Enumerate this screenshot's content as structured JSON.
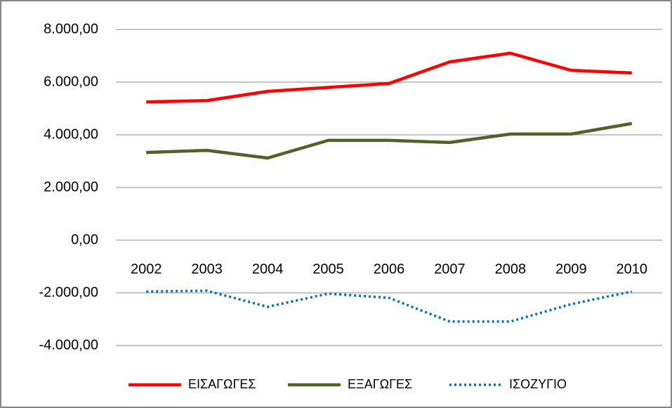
{
  "chart_data": {
    "type": "line",
    "categories": [
      "2002",
      "2003",
      "2004",
      "2005",
      "2006",
      "2007",
      "2008",
      "2009",
      "2010"
    ],
    "series": [
      {
        "name": "ΕΙΣΑΓΩΓΕΣ",
        "color": "#ff0000",
        "style": "solid",
        "values": [
          5250,
          5300,
          5650,
          5800,
          5950,
          6770,
          7100,
          6450,
          6350
        ]
      },
      {
        "name": "ΕΞΑΓΩΓΕΣ",
        "color": "#4f6228",
        "style": "solid",
        "values": [
          3330,
          3410,
          3120,
          3790,
          3790,
          3710,
          4030,
          4030,
          4430
        ]
      },
      {
        "name": "ΙΣΟΖΥΓΙΟ",
        "color": "#0070c0",
        "style": "dotted",
        "values": [
          -1950,
          -1920,
          -2530,
          -2030,
          -2190,
          -3090,
          -3090,
          -2430,
          -1950
        ]
      }
    ],
    "ylim": [
      -4000,
      8000
    ],
    "yticks": [
      {
        "value": -4000,
        "label": "-4.000,00"
      },
      {
        "value": -2000,
        "label": "-2.000,00"
      },
      {
        "value": 0,
        "label": "0,00"
      },
      {
        "value": 2000,
        "label": "2.000,00"
      },
      {
        "value": 4000,
        "label": "4.000,00"
      },
      {
        "value": 6000,
        "label": "6.000,00"
      },
      {
        "value": 8000,
        "label": "8.000,00"
      }
    ],
    "grid": true,
    "legend": "bottom"
  }
}
